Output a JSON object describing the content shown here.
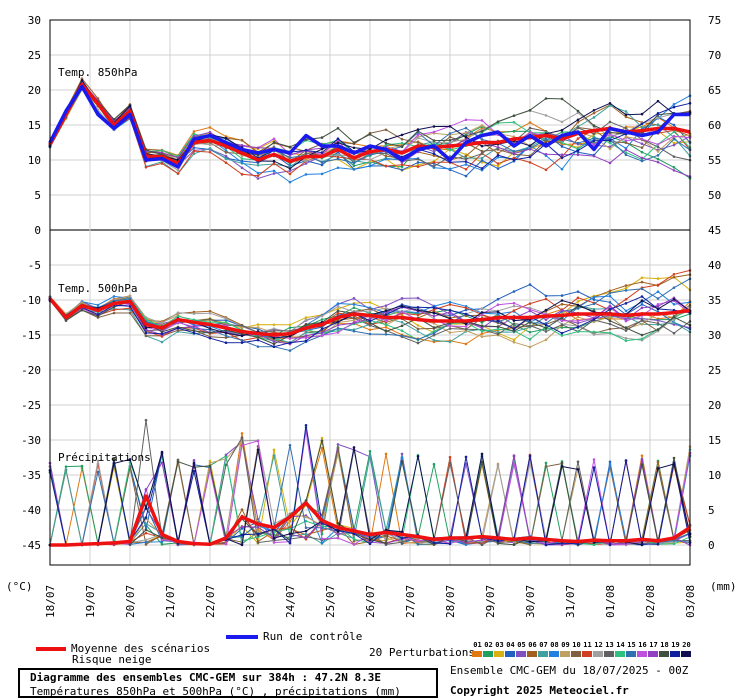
{
  "chart_data": {
    "type": "line",
    "left_axis": {
      "unit": "(°C)",
      "ticks": [
        30,
        25,
        20,
        15,
        10,
        5,
        0,
        -5,
        -10,
        -15,
        -20,
        -25,
        -30,
        -35,
        -40,
        -45
      ]
    },
    "right_axis": {
      "unit": "(mm)",
      "ticks": [
        75,
        70,
        65,
        60,
        55,
        50,
        45,
        40,
        35,
        30,
        25,
        20,
        15,
        10,
        5,
        0
      ]
    },
    "x_labels": [
      "18/07",
      "19/07",
      "20/07",
      "21/07",
      "22/07",
      "23/07",
      "24/07",
      "25/07",
      "26/07",
      "27/07",
      "28/07",
      "29/07",
      "30/07",
      "31/07",
      "01/08",
      "02/08",
      "03/08"
    ],
    "panel_labels": {
      "t850": "Temp. 850hPa",
      "t500": "Temp. 500hPa",
      "precip": "Précipitations"
    },
    "series": [
      {
        "name": "Moyenne des scénarios",
        "color": "#ee1111",
        "panel": "t850",
        "values": [
          12.2,
          16.5,
          20.8,
          18.0,
          15.0,
          17.0,
          10.5,
          10.5,
          9.5,
          12.5,
          12.8,
          12.0,
          11.0,
          10.0,
          10.8,
          9.8,
          10.5,
          10.5,
          11.5,
          10.3,
          11.2,
          11.5,
          11.0,
          12.0,
          11.8,
          12.0,
          12.2,
          12.5,
          12.5,
          13.0,
          13.2,
          13.5,
          13.0,
          13.8,
          14.2,
          14.5,
          14.0,
          14.2,
          14.5,
          14.5,
          14.0
        ]
      },
      {
        "name": "Run de contrôle",
        "color": "#1a1aee",
        "panel": "t850",
        "values": [
          12.5,
          17.0,
          20.5,
          16.5,
          14.5,
          16.5,
          10.0,
          10.2,
          9.0,
          13.0,
          13.5,
          12.5,
          11.5,
          11.0,
          11.5,
          11.0,
          13.5,
          12.0,
          12.0,
          11.0,
          12.0,
          11.5,
          10.0,
          11.5,
          12.0,
          10.0,
          12.5,
          13.5,
          14.0,
          12.0,
          13.5,
          12.0,
          13.5,
          14.0,
          11.5,
          14.5,
          14.0,
          13.5,
          14.0,
          16.5,
          16.5
        ]
      },
      {
        "name": "Moyenne des scénarios",
        "color": "#ee1111",
        "panel": "t500",
        "values": [
          -9.8,
          -12.5,
          -10.8,
          -11.5,
          -10.5,
          -10.2,
          -13.5,
          -14.0,
          -12.8,
          -13.2,
          -13.5,
          -14.0,
          -14.5,
          -14.8,
          -15.0,
          -14.8,
          -14.0,
          -13.5,
          -12.5,
          -12.0,
          -12.2,
          -12.5,
          -12.5,
          -12.8,
          -13.0,
          -13.0,
          -13.0,
          -12.8,
          -12.5,
          -12.5,
          -12.5,
          -12.3,
          -12.2,
          -12.0,
          -12.0,
          -12.0,
          -12.2,
          -12.0,
          -12.0,
          -11.8,
          -11.5
        ]
      },
      {
        "name": "Moyenne des scénarios",
        "color": "#ee1111",
        "panel": "precip",
        "values": [
          0,
          0,
          0.1,
          0.2,
          0.3,
          0.5,
          7.0,
          1.5,
          0.5,
          0.2,
          0.1,
          1.0,
          4.0,
          3.0,
          2.5,
          4.0,
          6.0,
          3.5,
          2.5,
          2.0,
          1.5,
          1.8,
          1.5,
          1.2,
          0.8,
          1.0,
          1.0,
          1.2,
          1.0,
          0.8,
          1.0,
          0.8,
          0.6,
          0.5,
          0.7,
          0.6,
          0.6,
          0.8,
          0.6,
          1.0,
          2.5
        ]
      }
    ],
    "perturbation_colors": [
      "#e07810",
      "#20a060",
      "#d8b010",
      "#2060c0",
      "#8050c0",
      "#a06020",
      "#40a0a0",
      "#2080e0",
      "#c0a060",
      "#806040",
      "#d04020",
      "#a0a0a0",
      "#606060",
      "#30c080",
      "#3070b0",
      "#c050e0",
      "#9040c0",
      "#405040",
      "#1020a0",
      "#101050"
    ]
  },
  "legend": {
    "mean_label": "Moyenne des scénarios",
    "snow_label": "Risque neige",
    "control_label": "Run de contrôle",
    "perturbations_label": "20 Perturbations",
    "perturbation_numbers": [
      "01",
      "02",
      "03",
      "04",
      "05",
      "06",
      "07",
      "08",
      "09",
      "10",
      "11",
      "12",
      "13",
      "14",
      "15",
      "16",
      "17",
      "18",
      "19",
      "20"
    ]
  },
  "footer": {
    "title": "Diagramme des ensembles CMC-GEM sur 384h : 47.2N 8.3E",
    "subtitle": "Températures 850hPa et 500hPa (°C) , précipitations (mm)",
    "ensemble_label": "Ensemble CMC-GEM du 18/07/2025 - 00Z",
    "copyright": "Copyright 2025 Meteociel.fr"
  }
}
